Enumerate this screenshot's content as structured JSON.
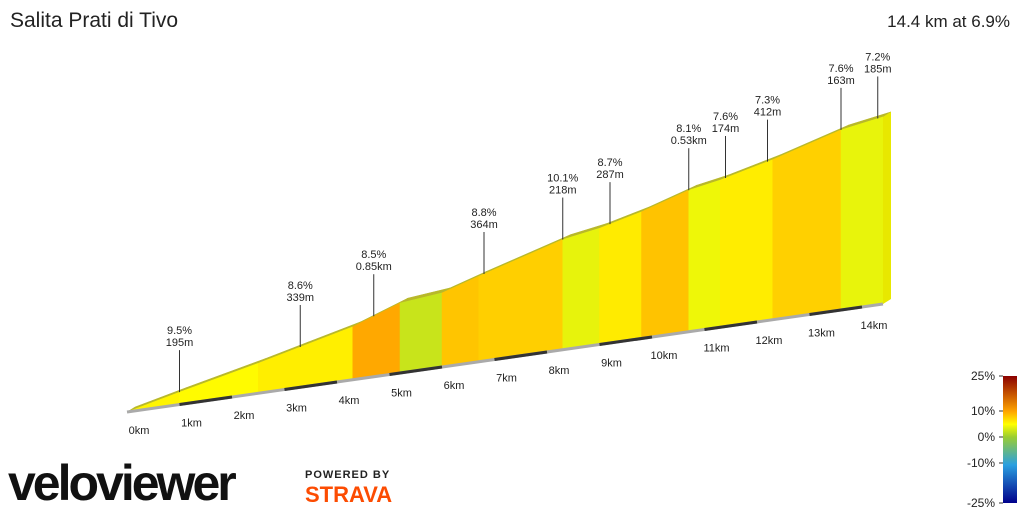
{
  "chart_data": {
    "type": "profile",
    "title": "Salita Prati di Tivo",
    "subtitle": "14.4 km at 6.9%",
    "profile": {
      "x": [
        0,
        1,
        2.5,
        3.3,
        4.3,
        5.2,
        6,
        6.7,
        8.3,
        9,
        9.8,
        10.7,
        11.3,
        12.3,
        13.6,
        14.4
      ],
      "elevation": [
        0,
        65,
        158,
        212,
        279,
        368,
        390,
        450,
        580,
        612,
        667,
        745,
        775,
        843,
        948,
        985
      ]
    },
    "xlim": [
      0,
      14.4
    ],
    "xticks": [
      {
        "value": 0,
        "label": "0km"
      },
      {
        "value": 1,
        "label": "1km"
      },
      {
        "value": 2,
        "label": "2km"
      },
      {
        "value": 3,
        "label": "3km"
      },
      {
        "value": 4,
        "label": "4km"
      },
      {
        "value": 5,
        "label": "5km"
      },
      {
        "value": 6,
        "label": "6km"
      },
      {
        "value": 7,
        "label": "7km"
      },
      {
        "value": 8,
        "label": "8km"
      },
      {
        "value": 9,
        "label": "9km"
      },
      {
        "value": 10,
        "label": "10km"
      },
      {
        "value": 11,
        "label": "11km"
      },
      {
        "value": 12,
        "label": "12km"
      },
      {
        "value": 13,
        "label": "13km"
      },
      {
        "value": 14,
        "label": "14km"
      }
    ],
    "annotations": [
      {
        "x": 1,
        "gradient": "9.5%",
        "length": "195m"
      },
      {
        "x": 3.3,
        "gradient": "8.6%",
        "length": "339m"
      },
      {
        "x": 4.7,
        "gradient": "8.5%",
        "length": "0.85km"
      },
      {
        "x": 6.8,
        "gradient": "8.8%",
        "length": "364m"
      },
      {
        "x": 8.3,
        "gradient": "10.1%",
        "length": "218m"
      },
      {
        "x": 9.2,
        "gradient": "8.7%",
        "length": "287m"
      },
      {
        "x": 10.7,
        "gradient": "8.1%",
        "length": "0.53km"
      },
      {
        "x": 11.4,
        "gradient": "7.6%",
        "length": "174m"
      },
      {
        "x": 12.2,
        "gradient": "7.3%",
        "length": "412m"
      },
      {
        "x": 13.6,
        "gradient": "7.6%",
        "length": "163m"
      },
      {
        "x": 14.3,
        "gradient": "7.2%",
        "length": "185m"
      }
    ],
    "colorscale": [
      {
        "value": -25,
        "color": "#00008b"
      },
      {
        "value": -10,
        "color": "#2aa0e0"
      },
      {
        "value": 0,
        "color": "#9acd32"
      },
      {
        "value": 6,
        "color": "#ffff00"
      },
      {
        "value": 10,
        "color": "#ffa500"
      },
      {
        "value": 25,
        "color": "#8b0000"
      }
    ],
    "legend_ticks": [
      {
        "value": 25,
        "label": "25%"
      },
      {
        "value": 10,
        "label": "10%"
      },
      {
        "value": 0,
        "label": "0%"
      },
      {
        "value": -10,
        "label": "-10%"
      },
      {
        "value": -25,
        "label": "-25%"
      }
    ]
  },
  "branding": {
    "logo": "veloviewer",
    "powered": "POWERED BY",
    "strava": "STRAVA"
  }
}
